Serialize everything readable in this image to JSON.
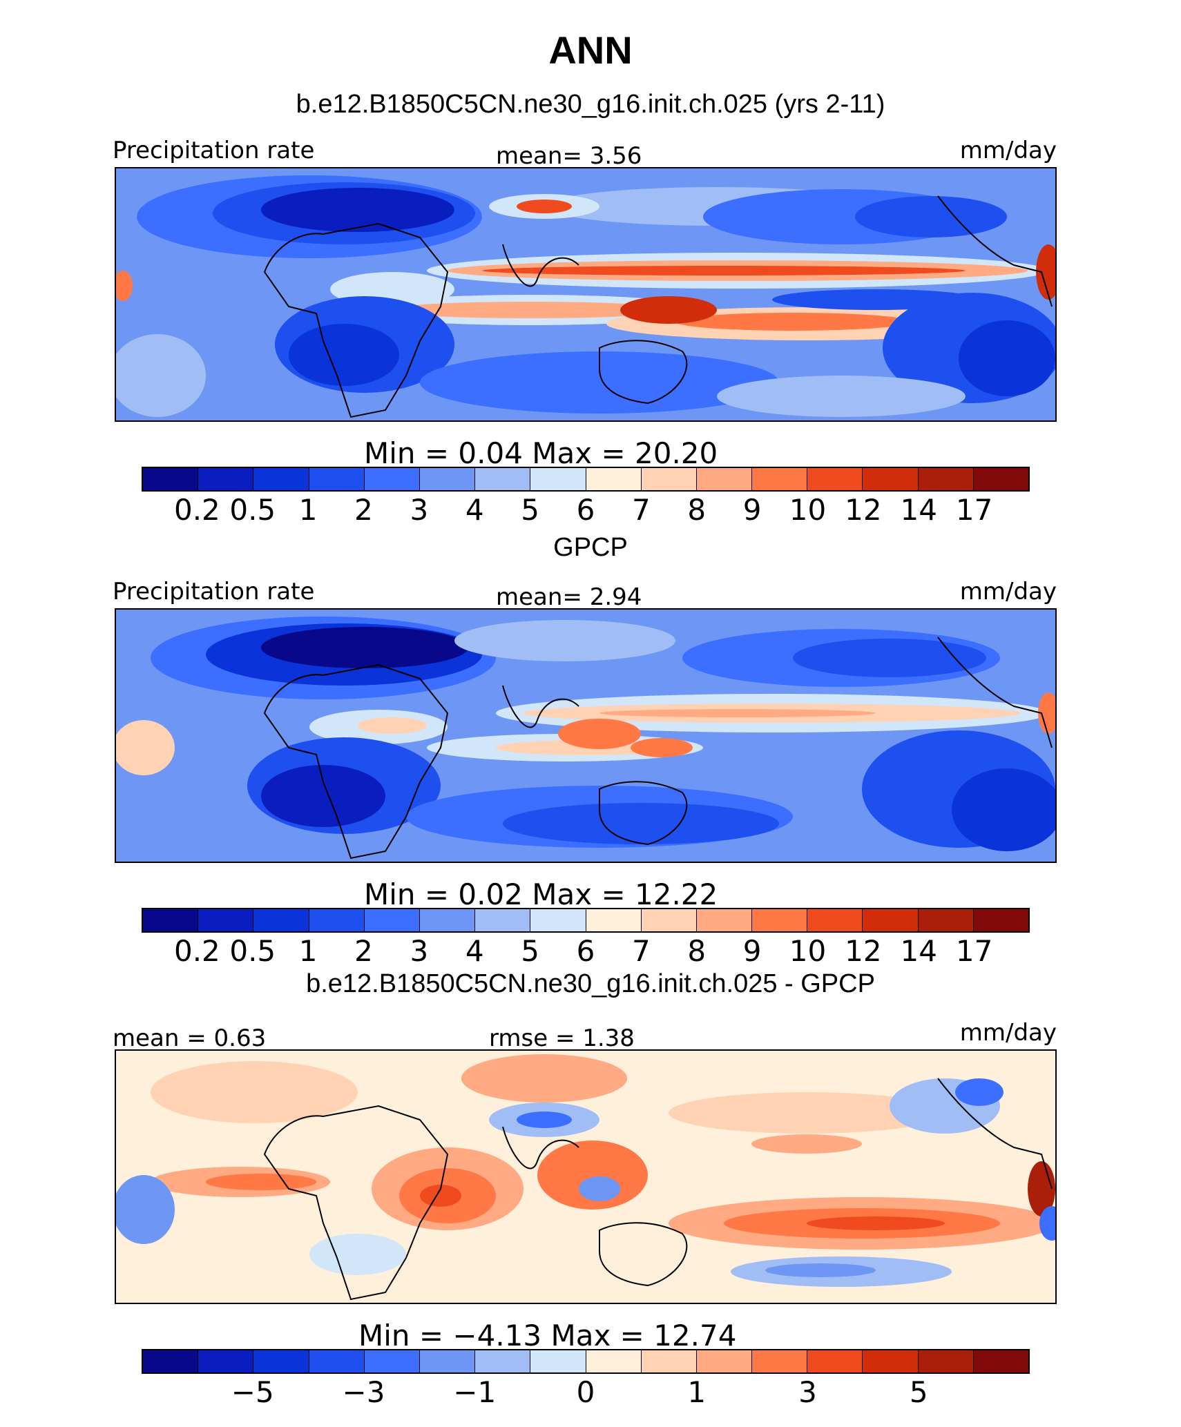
{
  "figure": {
    "title": "ANN"
  },
  "palette": {
    "levels": [
      "#08088a",
      "#0a1ec0",
      "#0a33d9",
      "#1e50f0",
      "#3c6eff",
      "#6e96f5",
      "#a0bef5",
      "#d2e6fa",
      "#fff0dc",
      "#ffd2b4",
      "#ffaa82",
      "#ff7846",
      "#f04b1e",
      "#d22d0a",
      "#aa1e0a",
      "#820a0a"
    ]
  },
  "chart_data": [
    {
      "type": "heatmap",
      "title": "b.e12.B1850C5CN.ne30_g16.init.ch.025 (yrs 2-11)",
      "left_label": "Precipitation rate",
      "center_label": "mean=    3.56",
      "units": "mm/day",
      "minmax_label": "Min  =    0.04  Max  =   20.20",
      "stats": {
        "mean": 3.56,
        "min": 0.04,
        "max": 20.2
      },
      "colorbar_ticks": [
        "0.2",
        "0.5",
        "1",
        "2",
        "3",
        "4",
        "5",
        "6",
        "7",
        "8",
        "9",
        "10",
        "12",
        "14",
        "17"
      ]
    },
    {
      "type": "heatmap",
      "title": "GPCP",
      "left_label": "Precipitation rate",
      "center_label": "mean=    2.94",
      "units": "mm/day",
      "minmax_label": "Min  =    0.02  Max  =   12.22",
      "stats": {
        "mean": 2.94,
        "min": 0.02,
        "max": 12.22
      },
      "colorbar_ticks": [
        "0.2",
        "0.5",
        "1",
        "2",
        "3",
        "4",
        "5",
        "6",
        "7",
        "8",
        "9",
        "10",
        "12",
        "14",
        "17"
      ]
    },
    {
      "type": "heatmap",
      "title": "b.e12.B1850C5CN.ne30_g16.init.ch.025 - GPCP",
      "left_label": "mean  =    0.63",
      "center_label": "rmse  =    1.38",
      "units": "mm/day",
      "minmax_label": "Min  =  −4.13  Max  =   12.74",
      "stats": {
        "mean": 0.63,
        "rmse": 1.38,
        "min": -4.13,
        "max": 12.74
      },
      "colorbar_ticks": [
        "−5",
        "−3",
        "−1",
        "0",
        "1",
        "3",
        "5"
      ]
    }
  ]
}
